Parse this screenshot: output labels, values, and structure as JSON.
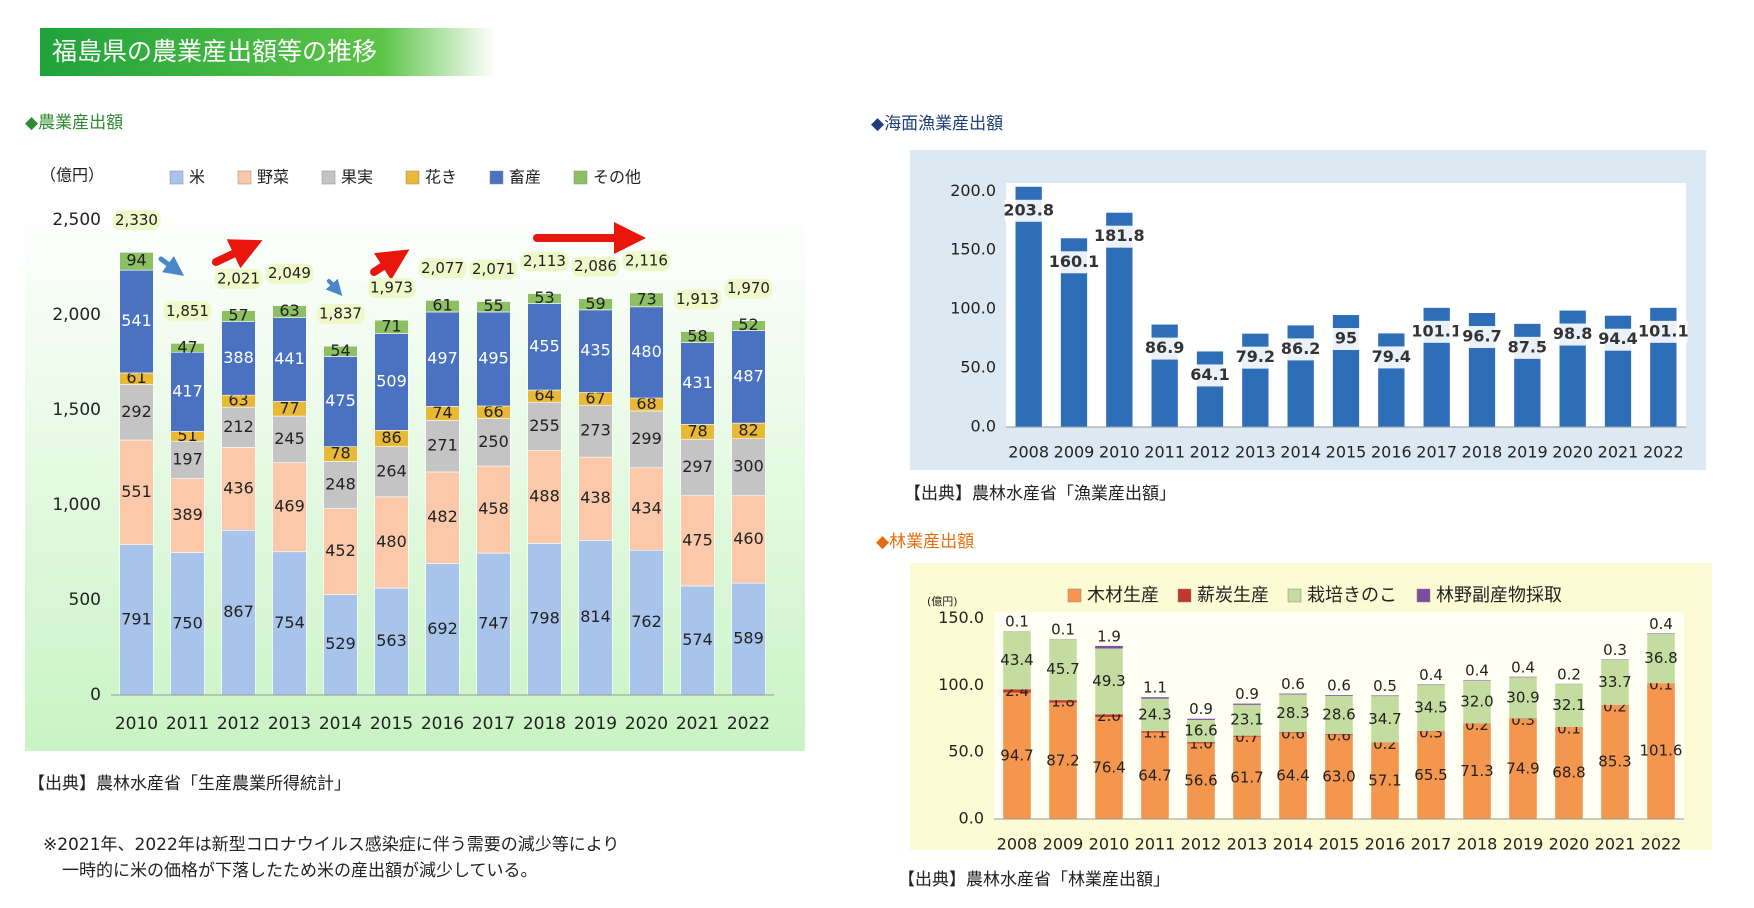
{
  "title": "福島県の農業産出額等の推移",
  "chart_data": [
    {
      "type": "bar",
      "stacked": true,
      "title": "◆農業産出額",
      "y_label": "（億円）",
      "categories": [
        "2010",
        "2011",
        "2012",
        "2013",
        "2014",
        "2015",
        "2016",
        "2017",
        "2018",
        "2019",
        "2020",
        "2021",
        "2022"
      ],
      "series": [
        {
          "name": "米",
          "color": "#a9c4ea",
          "values": [
            791,
            750,
            867,
            754,
            529,
            563,
            692,
            747,
            798,
            814,
            762,
            574,
            589
          ]
        },
        {
          "name": "野菜",
          "color": "#fbc9a9",
          "values": [
            551,
            389,
            436,
            469,
            452,
            480,
            482,
            458,
            488,
            438,
            434,
            475,
            460
          ]
        },
        {
          "name": "果実",
          "color": "#c4c4c4",
          "values": [
            292,
            197,
            212,
            245,
            248,
            264,
            271,
            250,
            255,
            273,
            299,
            297,
            300
          ]
        },
        {
          "name": "花き",
          "color": "#e9b935",
          "values": [
            61,
            51,
            63,
            77,
            78,
            86,
            74,
            66,
            64,
            67,
            68,
            78,
            82
          ]
        },
        {
          "name": "畜産",
          "color": "#4a72c0",
          "values": [
            541,
            417,
            388,
            441,
            475,
            509,
            497,
            495,
            455,
            435,
            480,
            431,
            487
          ]
        },
        {
          "name": "その他",
          "color": "#8cc062",
          "values": [
            94,
            47,
            57,
            63,
            54,
            71,
            61,
            55,
            53,
            59,
            73,
            58,
            52
          ]
        }
      ],
      "totals": {
        "values": [
          2330,
          1851,
          2021,
          2049,
          1837,
          1973,
          2077,
          2071,
          2113,
          2086,
          2116,
          1913,
          1970
        ],
        "value_labels": [
          "2,330",
          "1,851",
          "2,021",
          "2,049",
          "1,837",
          "1,973",
          "2,077",
          "2,071",
          "2,113",
          "2,086",
          "2,116",
          "1,913",
          "1,970"
        ]
      },
      "ylim": [
        0,
        2500
      ],
      "yticks": [
        0,
        500,
        {
          "value": 1000,
          "label": "1,000"
        },
        {
          "value": 1500,
          "label": "1,500"
        },
        {
          "value": 2000,
          "label": "2,000"
        },
        {
          "value": 2500,
          "label": "2,500"
        }
      ],
      "grid": false,
      "source": "【出典】農林水産省「生産農業所得統計」",
      "note": [
        "※2021年、2022年は新型コロナウイルス感染症に伴う需要の減少等により",
        "一時的に米の価格が下落したため米の産出額が減少している。"
      ]
    },
    {
      "type": "bar",
      "title": "◆海面漁業産出額",
      "categories": [
        "2008",
        "2009",
        "2010",
        "2011",
        "2012",
        "2013",
        "2014",
        "2015",
        "2016",
        "2017",
        "2018",
        "2019",
        "2020",
        "2021",
        "2022"
      ],
      "values": [
        203.8,
        160.1,
        181.8,
        86.9,
        64.1,
        79.2,
        86.2,
        95,
        79.4,
        101.1,
        96.7,
        87.5,
        98.8,
        94.4,
        101.1
      ],
      "color": "#2e6db8",
      "ylim": [
        0,
        207
      ],
      "yticks": [
        {
          "value": 0,
          "label": "0.0"
        },
        {
          "value": 50,
          "label": "50.0"
        },
        {
          "value": 100,
          "label": "100.0"
        },
        {
          "value": 150,
          "label": "150.0"
        },
        {
          "value": 200,
          "label": "200.0"
        }
      ],
      "grid": false,
      "source": "【出典】農林水産省「漁業産出額」"
    },
    {
      "type": "bar",
      "stacked": true,
      "title": "◆林業産出額",
      "y_label": "(億円)",
      "categories": [
        "2008",
        "2009",
        "2010",
        "2011",
        "2012",
        "2013",
        "2014",
        "2015",
        "2016",
        "2017",
        "2018",
        "2019",
        "2020",
        "2021",
        "2022"
      ],
      "series": [
        {
          "name": "木材生産",
          "color": "#f5964e",
          "values": [
            94.7,
            87.2,
            76.4,
            64.7,
            56.6,
            61.7,
            64.4,
            63.0,
            57.1,
            65.5,
            71.3,
            74.9,
            68.8,
            85.3,
            101.6
          ],
          "value_labels": [
            "94.7",
            "87.2",
            "76.4",
            "64.7",
            "56.6",
            "61.7",
            "64.4",
            "63.0",
            "57.1",
            "65.5",
            "71.3",
            "74.9",
            "68.8",
            "85.3",
            "101.6"
          ]
        },
        {
          "name": "薪炭生産",
          "color": "#c0392b",
          "values": [
            2.4,
            1.8,
            2.0,
            1.1,
            1.0,
            0.7,
            0.6,
            0.6,
            0.2,
            0.3,
            0.2,
            0.3,
            0.1,
            0.2,
            0.1
          ],
          "value_labels": [
            "2.4",
            "1.8",
            "2.0",
            "1.1",
            "1.0",
            "0.7",
            "0.6",
            "0.6",
            "0.2",
            "0.3",
            "0.2",
            "0.3",
            "0.1",
            "0.2",
            "0.1"
          ]
        },
        {
          "name": "栽培きのこ",
          "color": "#c4dca0",
          "values": [
            43.4,
            45.7,
            49.3,
            24.3,
            16.6,
            23.1,
            28.3,
            28.6,
            34.7,
            34.5,
            32.0,
            30.9,
            32.1,
            33.7,
            36.8
          ],
          "value_labels": [
            "43.4",
            "45.7",
            "49.3",
            "24.3",
            "16.6",
            "23.1",
            "28.3",
            "28.6",
            "34.7",
            "34.5",
            "32.0",
            "30.9",
            "32.1",
            "33.7",
            "36.8"
          ]
        },
        {
          "name": "林野副産物採取",
          "color": "#7a4fa0",
          "values": [
            0.1,
            0.1,
            1.9,
            1.1,
            0.9,
            0.9,
            0.6,
            0.6,
            0.5,
            0.4,
            0.4,
            0.4,
            0.2,
            0.3,
            0.4
          ],
          "value_labels": [
            "0.1",
            "0.1",
            "1.9",
            "1.1",
            "0.9",
            "0.9",
            "0.6",
            "0.6",
            "0.5",
            "0.4",
            "0.4",
            "0.4",
            "0.2",
            "0.3",
            "0.4"
          ]
        }
      ],
      "ylim": [
        0,
        155
      ],
      "yticks": [
        {
          "value": 0,
          "label": "0.0"
        },
        {
          "value": 50,
          "label": "50.0"
        },
        {
          "value": 100,
          "label": "100.0"
        },
        {
          "value": 150,
          "label": "150.0"
        }
      ],
      "grid": false,
      "source": "【出典】農林水産省「林業産出額」"
    }
  ]
}
